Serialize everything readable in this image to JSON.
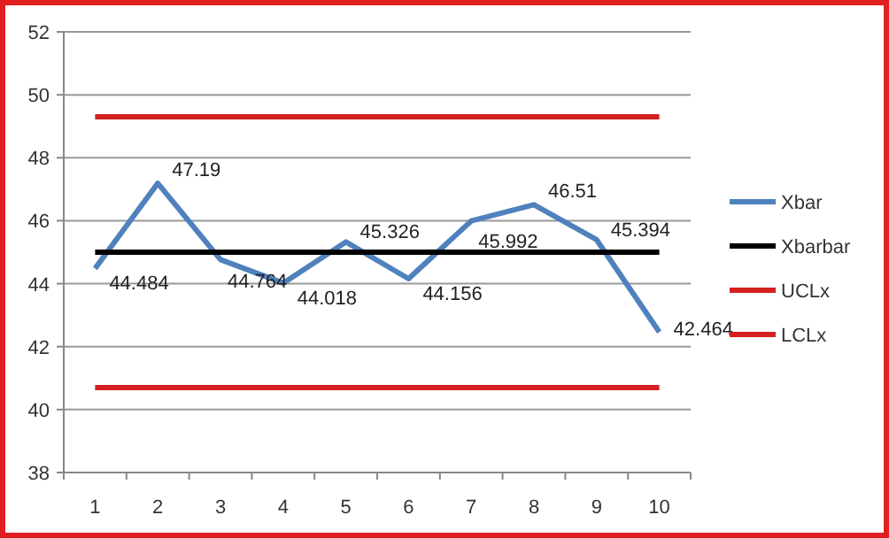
{
  "chart_data": {
    "type": "line",
    "categories": [
      "1",
      "2",
      "3",
      "4",
      "5",
      "6",
      "7",
      "8",
      "9",
      "10"
    ],
    "ylim": [
      38,
      52
    ],
    "yticks": [
      38,
      40,
      42,
      44,
      46,
      48,
      50,
      52
    ],
    "grid": "y",
    "legend": "right",
    "marker": "none",
    "series": [
      {
        "name": "Xbar",
        "color": "#4f81bd",
        "values": [
          44.484,
          47.19,
          44.764,
          44.018,
          45.326,
          44.156,
          45.992,
          46.51,
          45.394,
          42.464
        ],
        "value_labels": [
          "44.484",
          "47.19",
          "44.764",
          "44.018",
          "45.326",
          "44.156",
          "45.992",
          "46.51",
          "45.394",
          "42.464"
        ]
      },
      {
        "name": "Xbarbar",
        "color": "#000000",
        "values": [
          45.0,
          45.0,
          45.0,
          45.0,
          45.0,
          45.0,
          45.0,
          45.0,
          45.0,
          45.0
        ]
      },
      {
        "name": "UCLx",
        "color": "#d42020",
        "values": [
          49.3,
          49.3,
          49.3,
          49.3,
          49.3,
          49.3,
          49.3,
          49.3,
          49.3,
          49.3
        ]
      },
      {
        "name": "LCLx",
        "color": "#d42020",
        "values": [
          40.7,
          40.7,
          40.7,
          40.7,
          40.7,
          40.7,
          40.7,
          40.7,
          40.7,
          40.7
        ]
      }
    ]
  }
}
